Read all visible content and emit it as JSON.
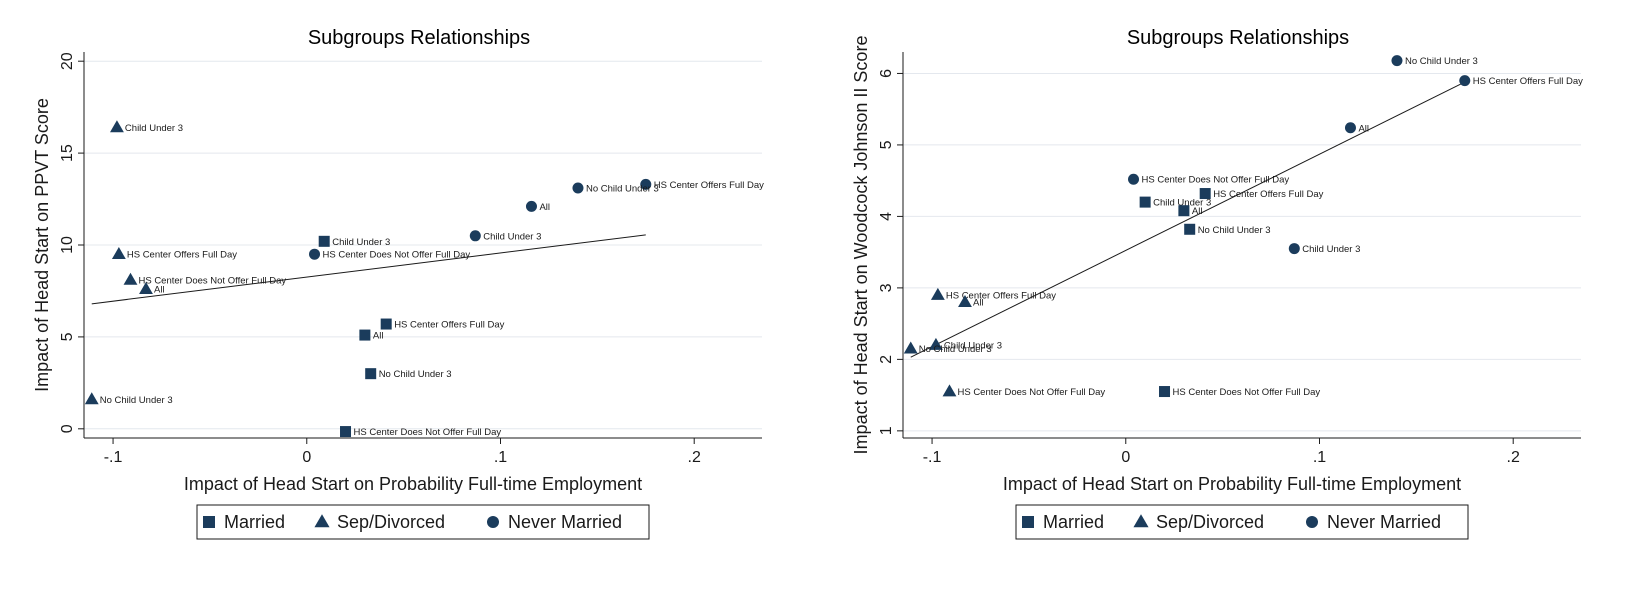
{
  "legend": {
    "items": [
      {
        "label": "Married",
        "marker": "square"
      },
      {
        "label": "Sep/Divorced",
        "marker": "triangle"
      },
      {
        "label": "Never Married",
        "marker": "circle"
      }
    ]
  },
  "colors": {
    "marker": "#1b3c5c",
    "grid": "#e4e8ee",
    "axis": "#1a1a1a"
  },
  "chart_data": [
    {
      "type": "scatter",
      "title": "Subgroups Relationships",
      "xlabel": "Impact of Head Start on Probability Full-time Employment",
      "ylabel": "Impact of Head Start on PPVT Score",
      "xlim": [
        -0.115,
        0.235
      ],
      "ylim": [
        -0.5,
        20.5
      ],
      "xticks": [
        {
          "value": -0.1,
          "label": "-.1"
        },
        {
          "value": 0,
          "label": "0"
        },
        {
          "value": 0.1,
          "label": ".1"
        },
        {
          "value": 0.2,
          "label": ".2"
        }
      ],
      "yticks": [
        {
          "value": 0,
          "label": "0"
        },
        {
          "value": 5,
          "label": "5"
        },
        {
          "value": 10,
          "label": "10"
        },
        {
          "value": 15,
          "label": "15"
        },
        {
          "value": 20,
          "label": "20"
        }
      ],
      "grid": "horizontal",
      "legend_position": "bottom",
      "fit_line": {
        "x": [
          -0.111,
          0.175
        ],
        "y": [
          6.8,
          10.55
        ]
      },
      "series": [
        {
          "name": "Married",
          "marker": "square",
          "points": [
            {
              "x": 0.009,
              "y": 10.2,
              "label": "Child Under 3"
            },
            {
              "x": 0.041,
              "y": 5.7,
              "label": "HS Center Offers Full Day"
            },
            {
              "x": 0.03,
              "y": 5.1,
              "label": "All"
            },
            {
              "x": 0.033,
              "y": 3.0,
              "label": "No Child Under 3"
            },
            {
              "x": 0.02,
              "y": -0.15,
              "label": "HS Center Does Not Offer Full Day"
            }
          ]
        },
        {
          "name": "Sep/Divorced",
          "marker": "triangle",
          "points": [
            {
              "x": -0.098,
              "y": 16.4,
              "label": "Child Under 3"
            },
            {
              "x": -0.097,
              "y": 9.5,
              "label": "HS Center Offers Full Day"
            },
            {
              "x": -0.091,
              "y": 8.1,
              "label": "HS Center Does Not Offer Full Day"
            },
            {
              "x": -0.083,
              "y": 7.6,
              "label": "All"
            },
            {
              "x": -0.111,
              "y": 1.6,
              "label": "No Child Under 3"
            }
          ]
        },
        {
          "name": "Never Married",
          "marker": "circle",
          "points": [
            {
              "x": 0.175,
              "y": 13.3,
              "label": "HS Center Offers Full Day"
            },
            {
              "x": 0.14,
              "y": 13.1,
              "label": "No Child Under 3"
            },
            {
              "x": 0.116,
              "y": 12.1,
              "label": "All"
            },
            {
              "x": 0.087,
              "y": 10.5,
              "label": "Child Under 3"
            },
            {
              "x": 0.004,
              "y": 9.5,
              "label": "HS Center Does Not Offer Full Day"
            }
          ]
        }
      ]
    },
    {
      "type": "scatter",
      "title": "Subgroups Relationships",
      "xlabel": "Impact of Head Start on Probability Full-time Employment",
      "ylabel": "Impact of Head Start on Woodcock Johnson II Score",
      "xlim": [
        -0.115,
        0.235
      ],
      "ylim": [
        0.9,
        6.3
      ],
      "xticks": [
        {
          "value": -0.1,
          "label": "-.1"
        },
        {
          "value": 0,
          "label": "0"
        },
        {
          "value": 0.1,
          "label": ".1"
        },
        {
          "value": 0.2,
          "label": ".2"
        }
      ],
      "yticks": [
        {
          "value": 1,
          "label": "1"
        },
        {
          "value": 2,
          "label": "2"
        },
        {
          "value": 3,
          "label": "3"
        },
        {
          "value": 4,
          "label": "4"
        },
        {
          "value": 5,
          "label": "5"
        },
        {
          "value": 6,
          "label": "6"
        }
      ],
      "grid": "horizontal",
      "legend_position": "bottom",
      "fit_line": {
        "x": [
          -0.111,
          0.175
        ],
        "y": [
          2.03,
          5.88
        ]
      },
      "series": [
        {
          "name": "Married",
          "marker": "square",
          "points": [
            {
              "x": 0.041,
              "y": 4.32,
              "label": "HS Center Offers Full Day"
            },
            {
              "x": 0.01,
              "y": 4.2,
              "label": "Child Under 3"
            },
            {
              "x": 0.03,
              "y": 4.08,
              "label": "All"
            },
            {
              "x": 0.033,
              "y": 3.82,
              "label": "No Child Under 3"
            },
            {
              "x": 0.02,
              "y": 1.55,
              "label": "HS Center Does Not Offer Full Day"
            }
          ]
        },
        {
          "name": "Sep/Divorced",
          "marker": "triangle",
          "points": [
            {
              "x": -0.097,
              "y": 2.9,
              "label": "HS Center Offers Full Day"
            },
            {
              "x": -0.083,
              "y": 2.8,
              "label": "All"
            },
            {
              "x": -0.098,
              "y": 2.2,
              "label": "Child Under 3"
            },
            {
              "x": -0.111,
              "y": 2.15,
              "label": "No Child Under 3"
            },
            {
              "x": -0.091,
              "y": 1.55,
              "label": "HS Center Does Not Offer Full Day"
            }
          ]
        },
        {
          "name": "Never Married",
          "marker": "circle",
          "points": [
            {
              "x": 0.14,
              "y": 6.18,
              "label": "No Child Under 3"
            },
            {
              "x": 0.175,
              "y": 5.9,
              "label": "HS Center Offers Full Day"
            },
            {
              "x": 0.116,
              "y": 5.24,
              "label": "All"
            },
            {
              "x": 0.004,
              "y": 4.52,
              "label": "HS Center Does Not Offer Full Day"
            },
            {
              "x": 0.087,
              "y": 3.55,
              "label": "Child Under 3"
            }
          ]
        }
      ]
    }
  ]
}
